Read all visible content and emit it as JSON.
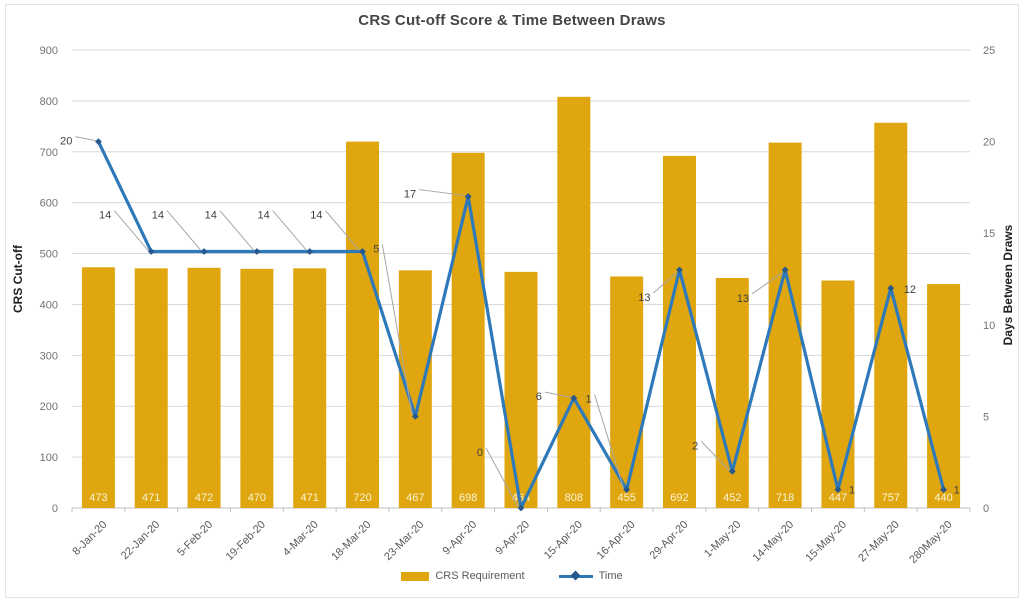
{
  "title": "CRS Cut-off Score & Time Between Draws",
  "left_axis_title": "CRS Cut-off",
  "right_axis_title": "Days Between Draws",
  "legend": {
    "bar_label": "CRS Requirement",
    "line_label": "Time"
  },
  "colors": {
    "bar": "#DFA60F",
    "line": "#2E79BA",
    "marker": "#27598C",
    "grid": "#D9D9D9",
    "axis_line": "#BFBFBF",
    "tick_text": "#737373",
    "x_text": "#595959",
    "data_label_text": "#404040",
    "leader": "#A6A6A6",
    "bar_label_text": "#FBF3D3",
    "title_text": "#454545"
  },
  "chart_data": {
    "type": "bar",
    "subtype": "combo-bar-line",
    "title": "CRS Cut-off Score & Time Between Draws",
    "categories": [
      "8-Jan-20",
      "22-Jan-20",
      "5-Feb-20",
      "19-Feb-20",
      "4-Mar-20",
      "18-Mar-20",
      "23-Mar-20",
      "9-Apr-20",
      "9-Apr-20",
      "15-Apr-20",
      "16-Apr-20",
      "29-Apr-20",
      "1-May-20",
      "14-May-20",
      "15-May-20",
      "27-May-20",
      "280May-20"
    ],
    "series": [
      {
        "name": "CRS Requirement",
        "type": "bar",
        "axis": "left",
        "values": [
          473,
          471,
          472,
          470,
          471,
          720,
          467,
          698,
          464,
          808,
          455,
          692,
          452,
          718,
          447,
          757,
          440
        ]
      },
      {
        "name": "Time",
        "type": "line",
        "axis": "right",
        "values": [
          20,
          14,
          14,
          14,
          14,
          14,
          5,
          17,
          0,
          6,
          1,
          13,
          2,
          13,
          1,
          12,
          1
        ]
      }
    ],
    "left_axis": {
      "label": "CRS Cut-off",
      "min": 0,
      "max": 900,
      "ticks": [
        0,
        100,
        200,
        300,
        400,
        500,
        600,
        700,
        800,
        900
      ]
    },
    "right_axis": {
      "label": "Days Between Draws",
      "min": 0,
      "max": 25,
      "ticks": [
        0,
        5,
        10,
        15,
        20,
        25
      ]
    },
    "grid": true,
    "data_labels": true,
    "legend_position": "bottom"
  }
}
